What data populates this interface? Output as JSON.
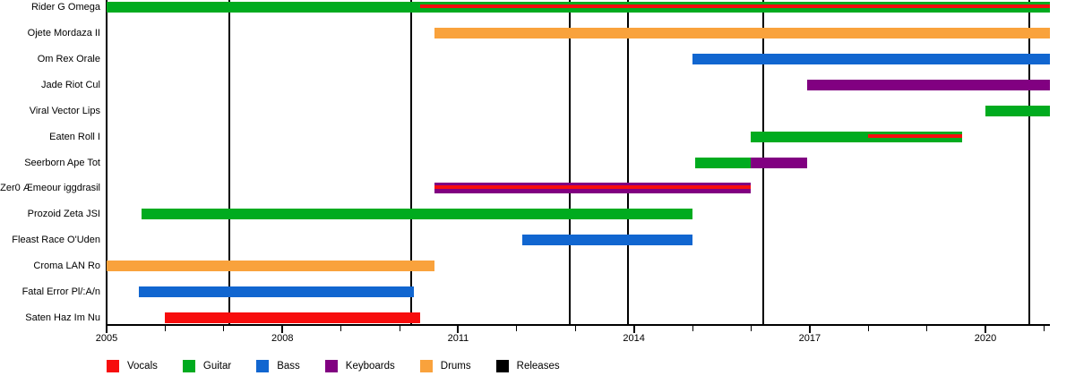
{
  "chart_data": {
    "type": "bar",
    "subtype": "gantt-band-member-timeline",
    "title": "",
    "x_axis": {
      "min_year": 2005,
      "max_year": 2021.1,
      "labeled_ticks": [
        2005,
        2008,
        2011,
        2014,
        2017,
        2020
      ],
      "minor_ticks_every_year": true
    },
    "present_end_year": 2021.1,
    "members": [
      {
        "name": "Rider G Omega",
        "bars": [
          {
            "role": "Guitar",
            "start": 2005.0,
            "end": "present"
          }
        ],
        "stripes": [
          {
            "role": "Vocals",
            "start": 2010.35,
            "end": "present"
          }
        ]
      },
      {
        "name": "Ojete Mordaza II",
        "bars": [
          {
            "role": "Drums",
            "start": 2010.6,
            "end": "present"
          }
        ],
        "stripes": []
      },
      {
        "name": "Om Rex Orale",
        "bars": [
          {
            "role": "Bass",
            "start": 2015.0,
            "end": "present"
          }
        ],
        "stripes": []
      },
      {
        "name": "Jade Riot Cul",
        "bars": [
          {
            "role": "Keyboards",
            "start": 2016.95,
            "end": "present"
          }
        ],
        "stripes": []
      },
      {
        "name": "Viral Vector Lips",
        "bars": [
          {
            "role": "Guitar",
            "start": 2020.0,
            "end": "present"
          }
        ],
        "stripes": []
      },
      {
        "name": "Eaten Roll I",
        "bars": [
          {
            "role": "Guitar",
            "start": 2016.0,
            "end": 2019.6
          }
        ],
        "stripes": [
          {
            "role": "Vocals",
            "start": 2018.0,
            "end": 2019.6
          }
        ]
      },
      {
        "name": "Seerborn Ape Tot",
        "bars": [
          {
            "role": "Guitar",
            "start": 2015.05,
            "end": 2016.0
          },
          {
            "role": "Keyboards",
            "start": 2016.0,
            "end": 2016.95
          }
        ],
        "stripes": []
      },
      {
        "name": "Zer0 Æmeour iggdrasil",
        "bars": [
          {
            "role": "Keyboards",
            "start": 2010.6,
            "end": 2016.0
          }
        ],
        "stripes": [
          {
            "role": "Vocals",
            "start": 2010.6,
            "end": 2016.0
          }
        ]
      },
      {
        "name": "Prozoid Zeta JSI",
        "bars": [
          {
            "role": "Guitar",
            "start": 2005.6,
            "end": 2015.0
          }
        ],
        "stripes": []
      },
      {
        "name": "Fleast Race O'Uden",
        "bars": [
          {
            "role": "Bass",
            "start": 2012.1,
            "end": 2015.0
          }
        ],
        "stripes": []
      },
      {
        "name": "Croma LAN Ro",
        "bars": [
          {
            "role": "Drums",
            "start": 2005.0,
            "end": 2010.6
          }
        ],
        "stripes": []
      },
      {
        "name": "Fatal Error Pl/:A/n",
        "bars": [
          {
            "role": "Bass",
            "start": 2005.55,
            "end": 2010.25
          }
        ],
        "stripes": []
      },
      {
        "name": "Saten Haz Im Nu",
        "bars": [
          {
            "role": "Vocals",
            "start": 2006.0,
            "end": 2010.35
          }
        ],
        "stripes": []
      }
    ],
    "releases_years": [
      2007.1,
      2010.2,
      2012.9,
      2013.9,
      2016.2,
      2020.75
    ],
    "legend": [
      {
        "label": "Vocals",
        "color": "#f70d0d"
      },
      {
        "label": "Guitar",
        "color": "#00ab1f"
      },
      {
        "label": "Bass",
        "color": "#1166d0"
      },
      {
        "label": "Keyboards",
        "color": "#810081"
      },
      {
        "label": "Drums",
        "color": "#f9a23c"
      },
      {
        "label": "Releases",
        "color": "#000000"
      }
    ],
    "role_colors": {
      "Vocals": "#f70d0d",
      "Guitar": "#00ab1f",
      "Bass": "#1166d0",
      "Keyboards": "#810081",
      "Drums": "#f9a23c",
      "Releases": "#000000"
    },
    "axis_color": "#000000"
  }
}
